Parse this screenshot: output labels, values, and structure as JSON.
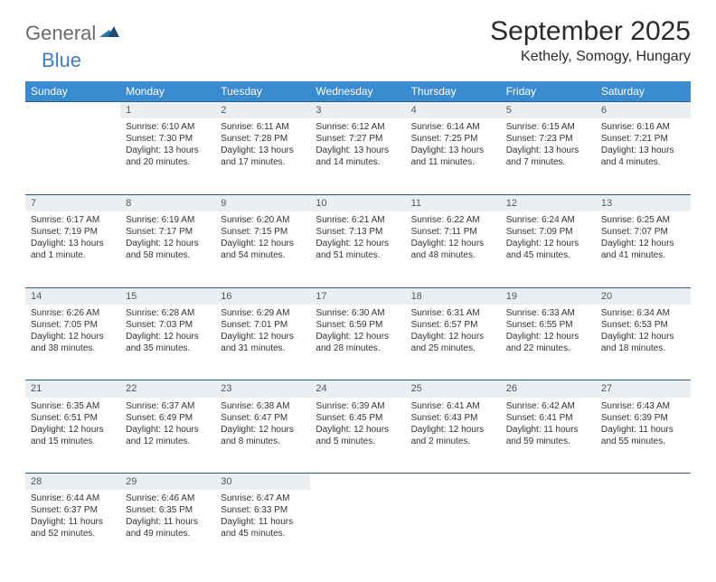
{
  "brand": {
    "part1": "General",
    "part2": "Blue"
  },
  "title": "September 2025",
  "location": "Kethely, Somogy, Hungary",
  "colors": {
    "header_bg": "#3a8bd0",
    "header_text": "#ffffff",
    "daynum_bg": "#eceff1",
    "row_border": "#2e5f8a",
    "brand_gray": "#6b6b6b",
    "brand_blue": "#3a7fc4",
    "text": "#333333"
  },
  "weekdays": [
    "Sunday",
    "Monday",
    "Tuesday",
    "Wednesday",
    "Thursday",
    "Friday",
    "Saturday"
  ],
  "weeks": [
    [
      null,
      {
        "n": "1",
        "sr": "Sunrise: 6:10 AM",
        "ss": "Sunset: 7:30 PM",
        "d1": "Daylight: 13 hours",
        "d2": "and 20 minutes."
      },
      {
        "n": "2",
        "sr": "Sunrise: 6:11 AM",
        "ss": "Sunset: 7:28 PM",
        "d1": "Daylight: 13 hours",
        "d2": "and 17 minutes."
      },
      {
        "n": "3",
        "sr": "Sunrise: 6:12 AM",
        "ss": "Sunset: 7:27 PM",
        "d1": "Daylight: 13 hours",
        "d2": "and 14 minutes."
      },
      {
        "n": "4",
        "sr": "Sunrise: 6:14 AM",
        "ss": "Sunset: 7:25 PM",
        "d1": "Daylight: 13 hours",
        "d2": "and 11 minutes."
      },
      {
        "n": "5",
        "sr": "Sunrise: 6:15 AM",
        "ss": "Sunset: 7:23 PM",
        "d1": "Daylight: 13 hours",
        "d2": "and 7 minutes."
      },
      {
        "n": "6",
        "sr": "Sunrise: 6:16 AM",
        "ss": "Sunset: 7:21 PM",
        "d1": "Daylight: 13 hours",
        "d2": "and 4 minutes."
      }
    ],
    [
      {
        "n": "7",
        "sr": "Sunrise: 6:17 AM",
        "ss": "Sunset: 7:19 PM",
        "d1": "Daylight: 13 hours",
        "d2": "and 1 minute."
      },
      {
        "n": "8",
        "sr": "Sunrise: 6:19 AM",
        "ss": "Sunset: 7:17 PM",
        "d1": "Daylight: 12 hours",
        "d2": "and 58 minutes."
      },
      {
        "n": "9",
        "sr": "Sunrise: 6:20 AM",
        "ss": "Sunset: 7:15 PM",
        "d1": "Daylight: 12 hours",
        "d2": "and 54 minutes."
      },
      {
        "n": "10",
        "sr": "Sunrise: 6:21 AM",
        "ss": "Sunset: 7:13 PM",
        "d1": "Daylight: 12 hours",
        "d2": "and 51 minutes."
      },
      {
        "n": "11",
        "sr": "Sunrise: 6:22 AM",
        "ss": "Sunset: 7:11 PM",
        "d1": "Daylight: 12 hours",
        "d2": "and 48 minutes."
      },
      {
        "n": "12",
        "sr": "Sunrise: 6:24 AM",
        "ss": "Sunset: 7:09 PM",
        "d1": "Daylight: 12 hours",
        "d2": "and 45 minutes."
      },
      {
        "n": "13",
        "sr": "Sunrise: 6:25 AM",
        "ss": "Sunset: 7:07 PM",
        "d1": "Daylight: 12 hours",
        "d2": "and 41 minutes."
      }
    ],
    [
      {
        "n": "14",
        "sr": "Sunrise: 6:26 AM",
        "ss": "Sunset: 7:05 PM",
        "d1": "Daylight: 12 hours",
        "d2": "and 38 minutes."
      },
      {
        "n": "15",
        "sr": "Sunrise: 6:28 AM",
        "ss": "Sunset: 7:03 PM",
        "d1": "Daylight: 12 hours",
        "d2": "and 35 minutes."
      },
      {
        "n": "16",
        "sr": "Sunrise: 6:29 AM",
        "ss": "Sunset: 7:01 PM",
        "d1": "Daylight: 12 hours",
        "d2": "and 31 minutes."
      },
      {
        "n": "17",
        "sr": "Sunrise: 6:30 AM",
        "ss": "Sunset: 6:59 PM",
        "d1": "Daylight: 12 hours",
        "d2": "and 28 minutes."
      },
      {
        "n": "18",
        "sr": "Sunrise: 6:31 AM",
        "ss": "Sunset: 6:57 PM",
        "d1": "Daylight: 12 hours",
        "d2": "and 25 minutes."
      },
      {
        "n": "19",
        "sr": "Sunrise: 6:33 AM",
        "ss": "Sunset: 6:55 PM",
        "d1": "Daylight: 12 hours",
        "d2": "and 22 minutes."
      },
      {
        "n": "20",
        "sr": "Sunrise: 6:34 AM",
        "ss": "Sunset: 6:53 PM",
        "d1": "Daylight: 12 hours",
        "d2": "and 18 minutes."
      }
    ],
    [
      {
        "n": "21",
        "sr": "Sunrise: 6:35 AM",
        "ss": "Sunset: 6:51 PM",
        "d1": "Daylight: 12 hours",
        "d2": "and 15 minutes."
      },
      {
        "n": "22",
        "sr": "Sunrise: 6:37 AM",
        "ss": "Sunset: 6:49 PM",
        "d1": "Daylight: 12 hours",
        "d2": "and 12 minutes."
      },
      {
        "n": "23",
        "sr": "Sunrise: 6:38 AM",
        "ss": "Sunset: 6:47 PM",
        "d1": "Daylight: 12 hours",
        "d2": "and 8 minutes."
      },
      {
        "n": "24",
        "sr": "Sunrise: 6:39 AM",
        "ss": "Sunset: 6:45 PM",
        "d1": "Daylight: 12 hours",
        "d2": "and 5 minutes."
      },
      {
        "n": "25",
        "sr": "Sunrise: 6:41 AM",
        "ss": "Sunset: 6:43 PM",
        "d1": "Daylight: 12 hours",
        "d2": "and 2 minutes."
      },
      {
        "n": "26",
        "sr": "Sunrise: 6:42 AM",
        "ss": "Sunset: 6:41 PM",
        "d1": "Daylight: 11 hours",
        "d2": "and 59 minutes."
      },
      {
        "n": "27",
        "sr": "Sunrise: 6:43 AM",
        "ss": "Sunset: 6:39 PM",
        "d1": "Daylight: 11 hours",
        "d2": "and 55 minutes."
      }
    ],
    [
      {
        "n": "28",
        "sr": "Sunrise: 6:44 AM",
        "ss": "Sunset: 6:37 PM",
        "d1": "Daylight: 11 hours",
        "d2": "and 52 minutes."
      },
      {
        "n": "29",
        "sr": "Sunrise: 6:46 AM",
        "ss": "Sunset: 6:35 PM",
        "d1": "Daylight: 11 hours",
        "d2": "and 49 minutes."
      },
      {
        "n": "30",
        "sr": "Sunrise: 6:47 AM",
        "ss": "Sunset: 6:33 PM",
        "d1": "Daylight: 11 hours",
        "d2": "and 45 minutes."
      },
      null,
      null,
      null,
      null
    ]
  ]
}
